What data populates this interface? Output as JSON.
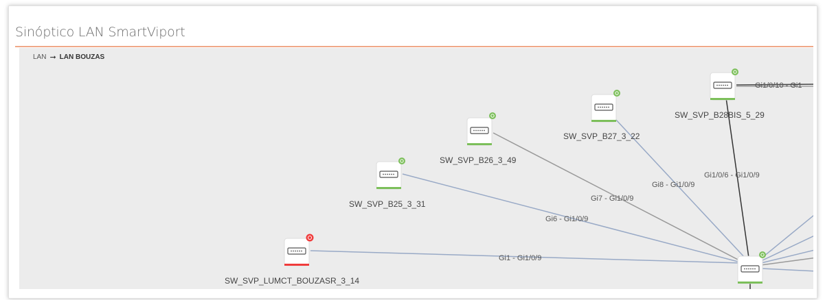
{
  "header": {
    "title": "Sinóptico LAN SmartViport"
  },
  "breadcrumb": {
    "root": "LAN",
    "current": "LAN BOUZAS"
  },
  "colors": {
    "ok": "#7cbf5a",
    "alarm": "#f03c3c",
    "link_blue": "#98a9c6",
    "link_gray": "#9a9a9a"
  },
  "nodes": [
    {
      "id": "n1",
      "label": "SW_SVP_LUMCT_BOUZASR_3_14",
      "status": "alarm"
    },
    {
      "id": "n2",
      "label": "SW_SVP_B25_3_31",
      "status": "ok"
    },
    {
      "id": "n3",
      "label": "SW_SVP_B26_3_49",
      "status": "ok"
    },
    {
      "id": "n4",
      "label": "SW_SVP_B27_3_22",
      "status": "ok"
    },
    {
      "id": "n5",
      "label": "SW_SVP_B28BIS_5_29",
      "status": "ok"
    },
    {
      "id": "core",
      "label": "",
      "status": "ok"
    }
  ],
  "links": [
    {
      "label": "Gi1 - Gi1/0/9"
    },
    {
      "label": "Gi6 - Gi1/0/9"
    },
    {
      "label": "Gi7 - Gi1/0/9"
    },
    {
      "label": "Gi8 - Gi1/0/9"
    },
    {
      "label": "Gi1/0/6 - Gi1/0/9"
    },
    {
      "label": "Gi1/0/10 - Gi1"
    }
  ]
}
